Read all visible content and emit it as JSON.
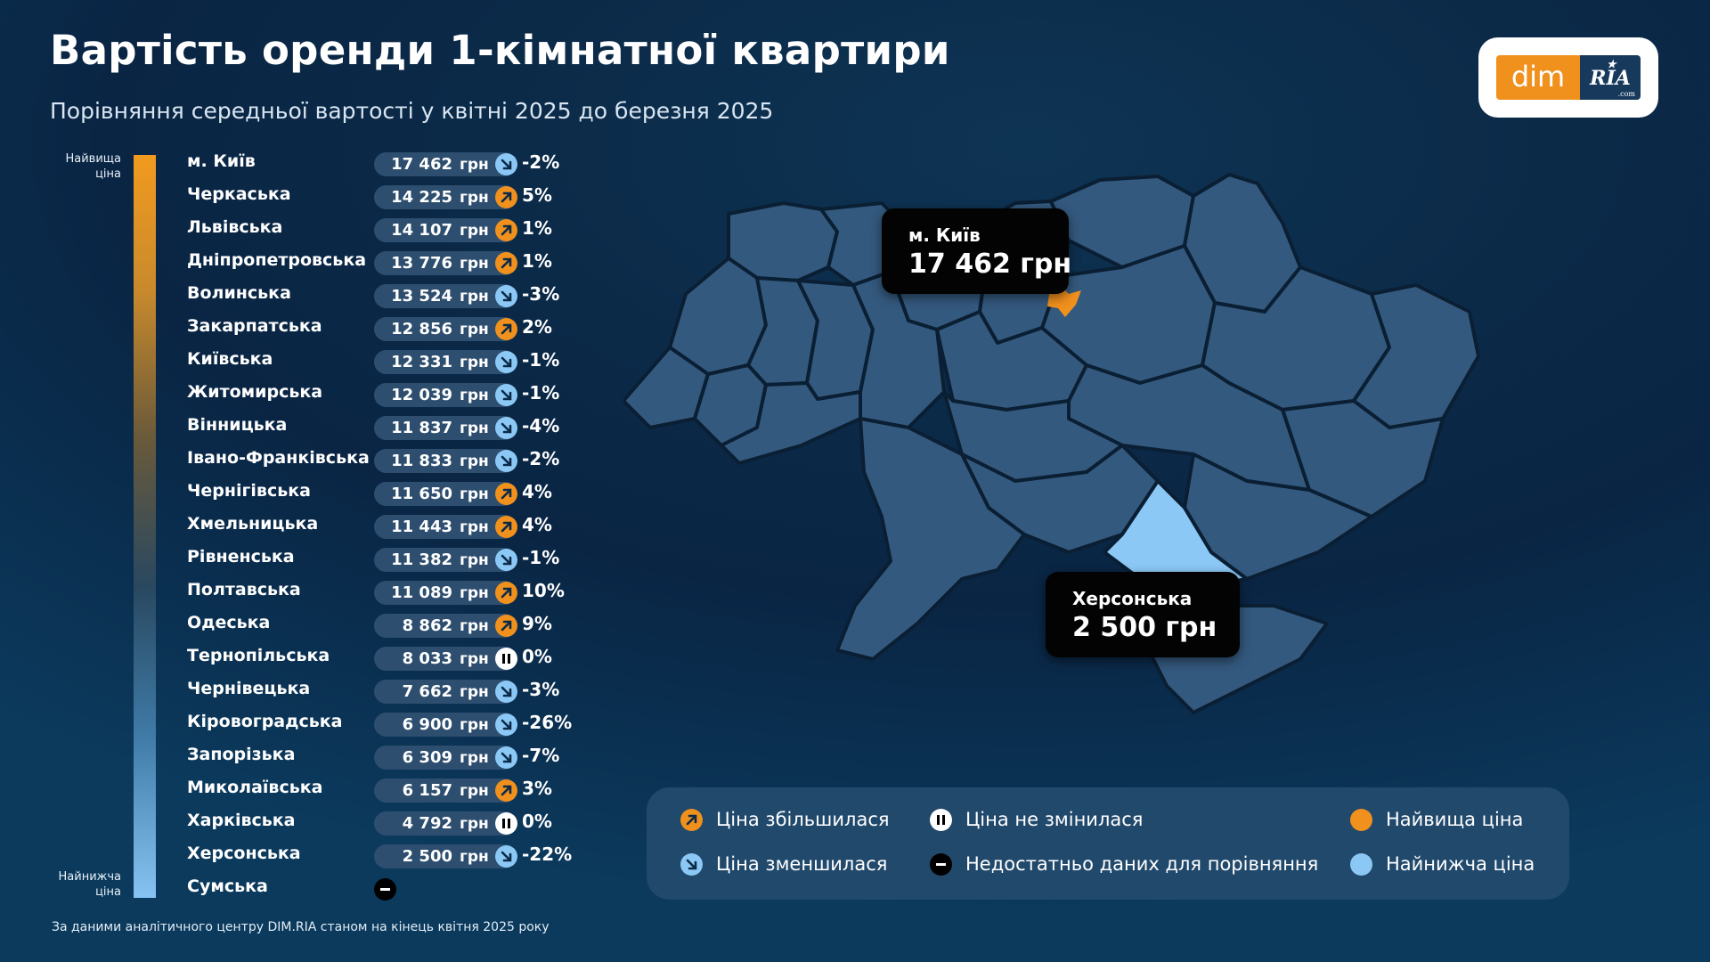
{
  "header": {
    "title": "Вартість оренди 1-кімнатної квартири",
    "subtitle": "Порівняння середньої вартості у квітні 2025 до березня 2025"
  },
  "logo": {
    "left": "dim",
    "right": "RIA",
    "suffix": ".com"
  },
  "scale": {
    "top_label": "Найвища ціна",
    "bottom_label": "Найнижча ціна"
  },
  "colors": {
    "increase": "#f0901d",
    "decrease": "#8cc8f5",
    "highest": "#f0901d",
    "lowest": "#8cc8f5",
    "map_fill": "#34597e",
    "background": "#0b2a48"
  },
  "chart_data": {
    "type": "table",
    "currency": "грн",
    "rows": [
      {
        "region": "м. Київ",
        "price": 17462,
        "price_text": "17 462",
        "change": "-2%",
        "trend": "down"
      },
      {
        "region": "Черкаська",
        "price": 14225,
        "price_text": "14 225",
        "change": "5%",
        "trend": "up"
      },
      {
        "region": "Львівська",
        "price": 14107,
        "price_text": "14 107",
        "change": "1%",
        "trend": "up"
      },
      {
        "region": "Дніпропетровська",
        "price": 13776,
        "price_text": "13 776",
        "change": "1%",
        "trend": "up"
      },
      {
        "region": "Волинська",
        "price": 13524,
        "price_text": "13 524",
        "change": "-3%",
        "trend": "down"
      },
      {
        "region": "Закарпатська",
        "price": 12856,
        "price_text": "12 856",
        "change": "2%",
        "trend": "up"
      },
      {
        "region": "Київська",
        "price": 12331,
        "price_text": "12 331",
        "change": "-1%",
        "trend": "down"
      },
      {
        "region": "Житомирська",
        "price": 12039,
        "price_text": "12 039",
        "change": "-1%",
        "trend": "down"
      },
      {
        "region": "Вінницька",
        "price": 11837,
        "price_text": "11 837",
        "change": "-4%",
        "trend": "down"
      },
      {
        "region": "Івано-Франківська",
        "price": 11833,
        "price_text": "11 833",
        "change": "-2%",
        "trend": "down"
      },
      {
        "region": "Чернігівська",
        "price": 11650,
        "price_text": "11 650",
        "change": "4%",
        "trend": "up"
      },
      {
        "region": "Хмельницька",
        "price": 11443,
        "price_text": "11 443",
        "change": "4%",
        "trend": "up"
      },
      {
        "region": "Рівненська",
        "price": 11382,
        "price_text": "11 382",
        "change": "-1%",
        "trend": "down"
      },
      {
        "region": "Полтавська",
        "price": 11089,
        "price_text": "11 089",
        "change": "10%",
        "trend": "up"
      },
      {
        "region": "Одеська",
        "price": 8862,
        "price_text": "8 862",
        "change": "9%",
        "trend": "up"
      },
      {
        "region": "Тернопільська",
        "price": 8033,
        "price_text": "8 033",
        "change": "0%",
        "trend": "none"
      },
      {
        "region": "Чернівецька",
        "price": 7662,
        "price_text": "7 662",
        "change": "-3%",
        "trend": "down"
      },
      {
        "region": "Кіровоградська",
        "price": 6900,
        "price_text": "6 900",
        "change": "-26%",
        "trend": "down"
      },
      {
        "region": "Запорізька",
        "price": 6309,
        "price_text": "6 309",
        "change": "-7%",
        "trend": "down"
      },
      {
        "region": "Миколаївська",
        "price": 6157,
        "price_text": "6 157",
        "change": "3%",
        "trend": "up"
      },
      {
        "region": "Харківська",
        "price": 4792,
        "price_text": "4 792",
        "change": "0%",
        "trend": "none"
      },
      {
        "region": "Херсонська",
        "price": 2500,
        "price_text": "2 500",
        "change": "-22%",
        "trend": "down"
      },
      {
        "region": "Сумська",
        "price": null,
        "price_text": "",
        "change": "",
        "trend": "nodata"
      }
    ]
  },
  "map": {
    "highest": {
      "name": "м. Київ",
      "value": "17 462 грн"
    },
    "lowest": {
      "name": "Херсонська",
      "value": "2 500 грн"
    }
  },
  "legend": {
    "increase": "Ціна збільшилася",
    "decrease": "Ціна зменшилася",
    "unchanged": "Ціна не змінилася",
    "nodata": "Недостатньо даних для порівняння",
    "highest": "Найвища ціна",
    "lowest": "Найнижча ціна"
  },
  "footer": {
    "source": "За даними аналітичного центру DIM.RIA станом на кінець квітня 2025 року"
  }
}
